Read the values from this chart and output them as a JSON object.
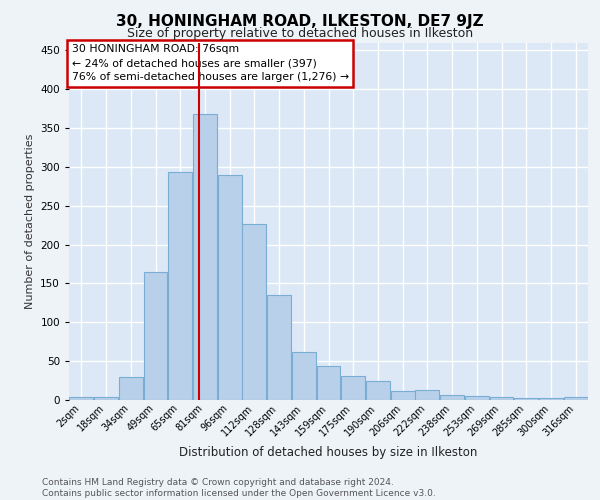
{
  "title": "30, HONINGHAM ROAD, ILKESTON, DE7 9JZ",
  "subtitle": "Size of property relative to detached houses in Ilkeston",
  "xlabel": "Distribution of detached houses by size in Ilkeston",
  "ylabel": "Number of detached properties",
  "bar_labels": [
    "2sqm",
    "18sqm",
    "34sqm",
    "49sqm",
    "65sqm",
    "81sqm",
    "96sqm",
    "112sqm",
    "128sqm",
    "143sqm",
    "159sqm",
    "175sqm",
    "190sqm",
    "206sqm",
    "222sqm",
    "238sqm",
    "253sqm",
    "269sqm",
    "285sqm",
    "300sqm",
    "316sqm"
  ],
  "bar_values": [
    4,
    4,
    30,
    165,
    293,
    368,
    290,
    226,
    135,
    62,
    44,
    31,
    25,
    12,
    13,
    6,
    5,
    4,
    2,
    2,
    4
  ],
  "bar_color": "#b8d0ea",
  "bar_edge_color": "#7aadd4",
  "annotation_text_lines": [
    "30 HONINGHAM ROAD: 76sqm",
    "← 24% of detached houses are smaller (397)",
    "76% of semi-detached houses are larger (1,276) →"
  ],
  "vline_color": "#cc0000",
  "annotation_box_edge_color": "#cc0000",
  "ylim": [
    0,
    460
  ],
  "yticks": [
    0,
    50,
    100,
    150,
    200,
    250,
    300,
    350,
    400,
    450
  ],
  "background_color": "#dce8f5",
  "grid_color": "#ffffff",
  "fig_background": "#eef3f8",
  "footer": "Contains HM Land Registry data © Crown copyright and database right 2024.\nContains public sector information licensed under the Open Government Licence v3.0.",
  "vline_index": 4.75,
  "title_fontsize": 11,
  "subtitle_fontsize": 9,
  "ylabel_fontsize": 8,
  "xlabel_fontsize": 8.5,
  "tick_fontsize": 7,
  "footer_fontsize": 6.5,
  "annot_fontsize": 7.8
}
